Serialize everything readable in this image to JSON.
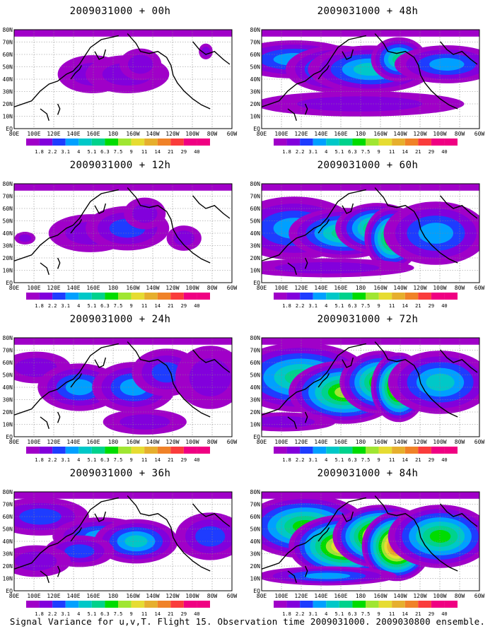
{
  "panels": [
    {
      "id": "00h",
      "title": "2009031000 + 00h",
      "intensity": 0.15,
      "blobs": [
        [
          0.36,
          0.45,
          0.1,
          0.12,
          0.9
        ],
        [
          0.52,
          0.45,
          0.12,
          0.12,
          0.9
        ],
        [
          0.58,
          0.35,
          0.06,
          0.1,
          1.2
        ],
        [
          0.88,
          0.22,
          0.02,
          0.05,
          0.8
        ]
      ]
    },
    {
      "id": "48h",
      "title": "2009031000 + 48h",
      "intensity": 0.55,
      "blobs": [
        [
          0.15,
          0.3,
          0.18,
          0.12,
          0.6
        ],
        [
          0.35,
          0.4,
          0.15,
          0.15,
          0.8
        ],
        [
          0.5,
          0.4,
          0.18,
          0.15,
          0.9
        ],
        [
          0.63,
          0.3,
          0.08,
          0.14,
          1.0
        ],
        [
          0.85,
          0.35,
          0.15,
          0.12,
          0.7
        ],
        [
          0.45,
          0.75,
          0.3,
          0.08,
          0.3
        ]
      ]
    },
    {
      "id": "12h",
      "title": "2009031000 + 12h",
      "intensity": 0.25,
      "blobs": [
        [
          0.35,
          0.5,
          0.12,
          0.12,
          0.8
        ],
        [
          0.52,
          0.45,
          0.12,
          0.14,
          0.9
        ],
        [
          0.6,
          0.3,
          0.06,
          0.1,
          0.6
        ],
        [
          0.78,
          0.55,
          0.05,
          0.08,
          0.5
        ],
        [
          0.05,
          0.55,
          0.03,
          0.04,
          0.5
        ]
      ]
    },
    {
      "id": "60h",
      "title": "2009031000 + 60h",
      "intensity": 0.7,
      "blobs": [
        [
          0.15,
          0.45,
          0.18,
          0.2,
          0.6
        ],
        [
          0.38,
          0.5,
          0.16,
          0.16,
          0.9
        ],
        [
          0.53,
          0.45,
          0.12,
          0.16,
          1.0
        ],
        [
          0.6,
          0.55,
          0.08,
          0.2,
          1.1
        ],
        [
          0.8,
          0.5,
          0.15,
          0.2,
          0.6
        ],
        [
          0.3,
          0.85,
          0.25,
          0.06,
          0.3
        ]
      ]
    },
    {
      "id": "24h",
      "title": "2009031000 + 24h",
      "intensity": 0.35,
      "blobs": [
        [
          0.1,
          0.3,
          0.1,
          0.1,
          0.5
        ],
        [
          0.3,
          0.5,
          0.12,
          0.15,
          0.9
        ],
        [
          0.55,
          0.5,
          0.12,
          0.16,
          1.0
        ],
        [
          0.7,
          0.35,
          0.1,
          0.15,
          0.7
        ],
        [
          0.9,
          0.4,
          0.1,
          0.2,
          0.5
        ],
        [
          0.6,
          0.85,
          0.12,
          0.08,
          0.4
        ]
      ]
    },
    {
      "id": "72h",
      "title": "2009031000 + 72h",
      "intensity": 0.8,
      "blobs": [
        [
          0.18,
          0.4,
          0.2,
          0.22,
          0.7
        ],
        [
          0.38,
          0.55,
          0.16,
          0.2,
          1.0
        ],
        [
          0.55,
          0.45,
          0.12,
          0.2,
          1.0
        ],
        [
          0.63,
          0.5,
          0.08,
          0.22,
          1.2
        ],
        [
          0.82,
          0.45,
          0.15,
          0.2,
          0.6
        ],
        [
          0.1,
          0.85,
          0.15,
          0.06,
          0.3
        ]
      ]
    },
    {
      "id": "36h",
      "title": "2009031000 + 36h",
      "intensity": 0.45,
      "blobs": [
        [
          0.12,
          0.25,
          0.14,
          0.12,
          0.5
        ],
        [
          0.4,
          0.45,
          0.14,
          0.12,
          0.8
        ],
        [
          0.56,
          0.5,
          0.12,
          0.14,
          1.0
        ],
        [
          0.3,
          0.6,
          0.1,
          0.1,
          0.6
        ],
        [
          0.9,
          0.45,
          0.1,
          0.15,
          0.6
        ],
        [
          0.1,
          0.7,
          0.1,
          0.1,
          0.4
        ]
      ]
    },
    {
      "id": "84h",
      "title": "2009031000 + 84h",
      "intensity": 0.95,
      "blobs": [
        [
          0.2,
          0.35,
          0.18,
          0.2,
          0.7
        ],
        [
          0.38,
          0.55,
          0.16,
          0.2,
          1.0
        ],
        [
          0.55,
          0.45,
          0.14,
          0.2,
          1.1
        ],
        [
          0.62,
          0.55,
          0.1,
          0.22,
          1.2
        ],
        [
          0.82,
          0.45,
          0.15,
          0.2,
          0.7
        ],
        [
          0.3,
          0.85,
          0.2,
          0.06,
          0.4
        ]
      ]
    }
  ],
  "lat_labels": [
    "80N",
    "70N",
    "60N",
    "50N",
    "40N",
    "30N",
    "20N",
    "10N",
    "EQ"
  ],
  "lon_labels": [
    "80E",
    "100E",
    "120E",
    "140E",
    "160E",
    "180",
    "160W",
    "140W",
    "120W",
    "100W",
    "80W",
    "60W"
  ],
  "colorbar": {
    "levels": [
      "1.8",
      "2.2",
      "3.1",
      "4",
      "5.1",
      "6.3",
      "7.5",
      "9",
      "11",
      "14",
      "21",
      "29",
      "40"
    ],
    "colors": [
      "#a000c8",
      "#8200dc",
      "#1e3cff",
      "#00a0ff",
      "#00c8c8",
      "#00d28c",
      "#00dc00",
      "#a0e632",
      "#e6dc32",
      "#e6af2d",
      "#f08228",
      "#fa3c3c",
      "#f00082"
    ]
  },
  "caption": "Signal Variance for u,v,T. Flight 15. Observation time 2009031000. 2009030800 ensemble."
}
